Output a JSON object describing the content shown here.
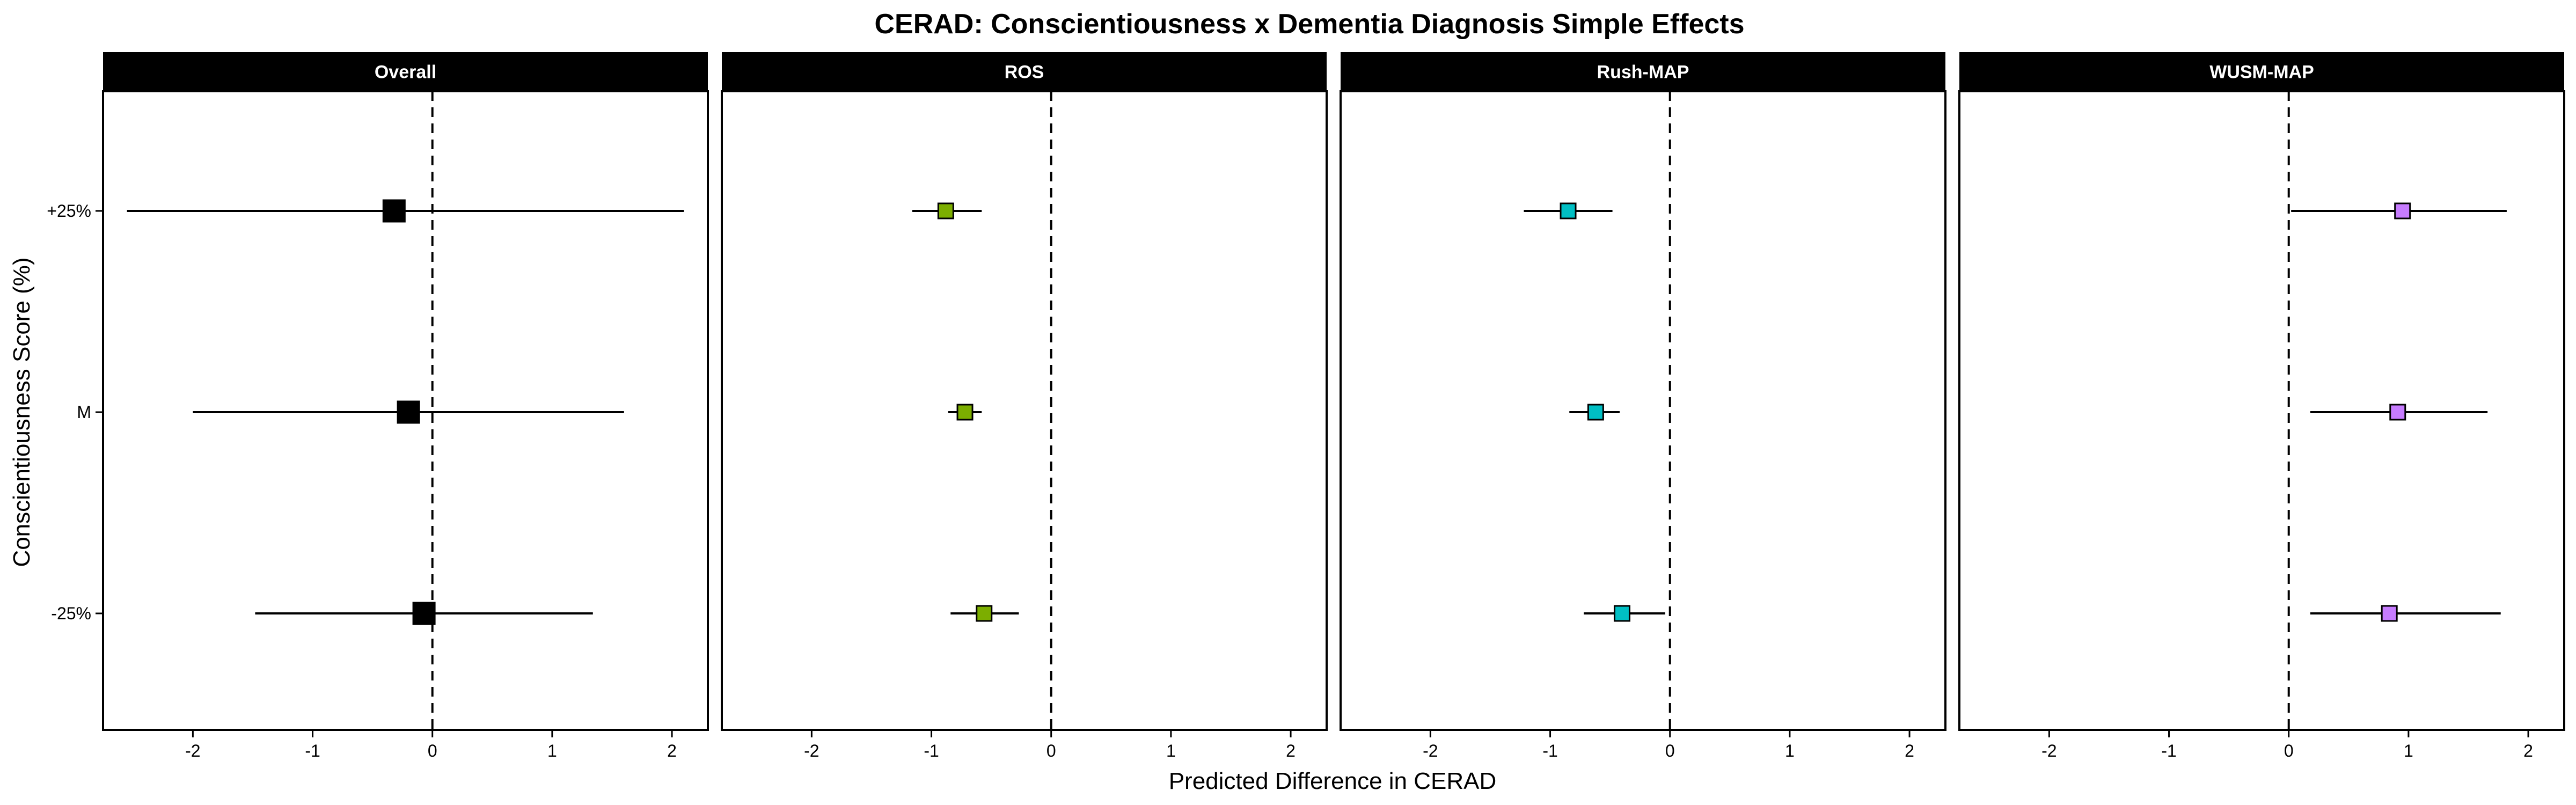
{
  "chart_data": {
    "type": "forest",
    "title": "CERAD: Conscientiousness x Dementia Diagnosis Simple Effects",
    "xlabel": "Predicted Difference in CERAD",
    "ylabel": "Conscientiousness Score (%)",
    "xlim": [
      -2.75,
      2.3
    ],
    "x_ticks": [
      -2,
      -1,
      0,
      1,
      2
    ],
    "x_tick_labels": [
      "-2",
      "-1",
      "0",
      "1",
      "2"
    ],
    "y_categories": [
      "+25%",
      "M",
      "-25%"
    ],
    "reference_line": 0,
    "panels": [
      {
        "name": "Overall",
        "color": "#000000",
        "points": [
          {
            "level": "+25%",
            "estimate": -0.32,
            "lower": -2.55,
            "upper": 2.1
          },
          {
            "level": "M",
            "estimate": -0.2,
            "lower": -2.0,
            "upper": 1.6
          },
          {
            "level": "-25%",
            "estimate": -0.07,
            "lower": -1.48,
            "upper": 1.34
          }
        ]
      },
      {
        "name": "ROS",
        "color": "#7cae00",
        "points": [
          {
            "level": "+25%",
            "estimate": -0.88,
            "lower": -1.16,
            "upper": -0.58
          },
          {
            "level": "M",
            "estimate": -0.72,
            "lower": -0.86,
            "upper": -0.58
          },
          {
            "level": "-25%",
            "estimate": -0.56,
            "lower": -0.84,
            "upper": -0.27
          }
        ]
      },
      {
        "name": "Rush-MAP",
        "color": "#00bfc4",
        "points": [
          {
            "level": "+25%",
            "estimate": -0.85,
            "lower": -1.22,
            "upper": -0.48
          },
          {
            "level": "M",
            "estimate": -0.62,
            "lower": -0.84,
            "upper": -0.42
          },
          {
            "level": "-25%",
            "estimate": -0.4,
            "lower": -0.72,
            "upper": -0.04
          }
        ]
      },
      {
        "name": "WUSM-MAP",
        "color": "#c77cff",
        "points": [
          {
            "level": "+25%",
            "estimate": 0.95,
            "lower": 0.02,
            "upper": 1.82
          },
          {
            "level": "M",
            "estimate": 0.91,
            "lower": 0.18,
            "upper": 1.66
          },
          {
            "level": "-25%",
            "estimate": 0.84,
            "lower": 0.18,
            "upper": 1.77
          }
        ]
      }
    ]
  }
}
